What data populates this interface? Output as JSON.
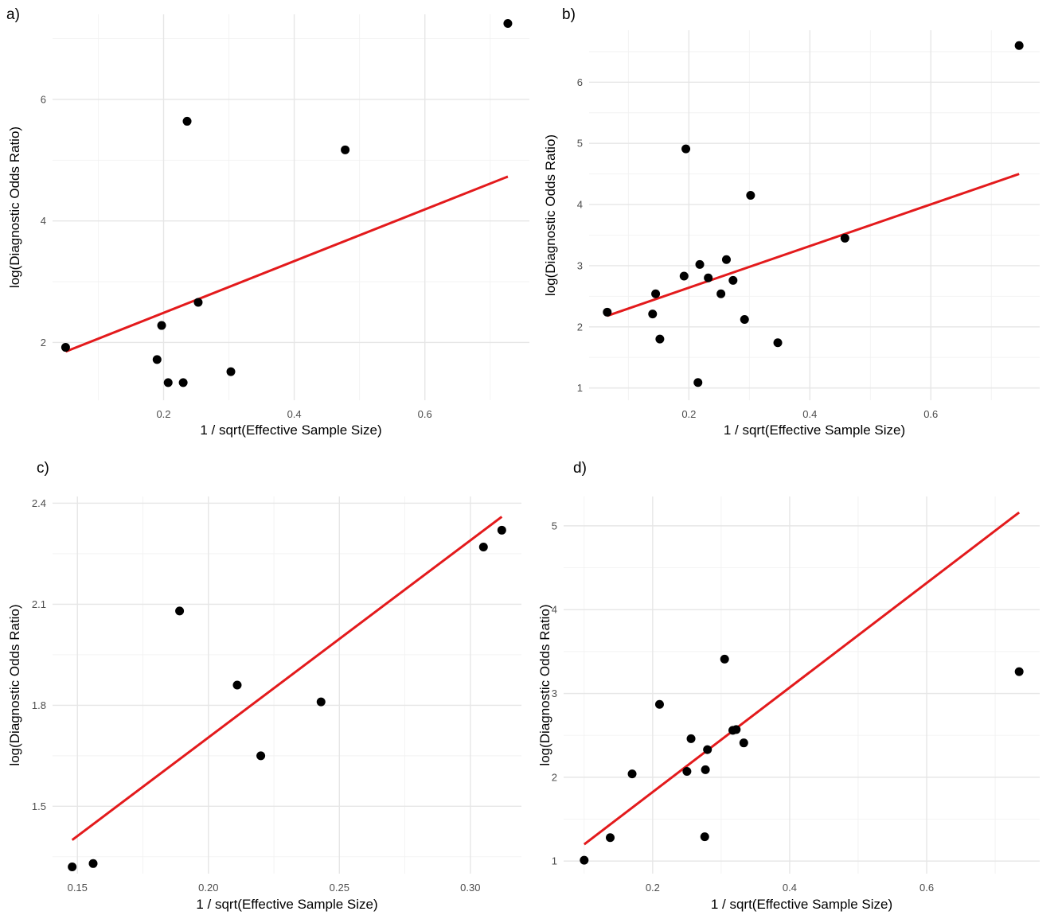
{
  "colors": {
    "point": "#000000",
    "fit_line": "#e31a1c",
    "grid": "#e6e6e6"
  },
  "chart_data": [
    {
      "type": "scatter",
      "panel_tag": "a)",
      "xlabel": "1 / sqrt(Effective Sample Size)",
      "ylabel": "log(Diagnostic Odds Ratio)",
      "xlim": [
        0.03,
        0.76
      ],
      "ylim": [
        1.05,
        7.4
      ],
      "xticks": [
        0.2,
        0.4,
        0.6
      ],
      "xtick_labels": [
        "0.2",
        "0.4",
        "0.6"
      ],
      "xminor": [
        0.1,
        0.3,
        0.5,
        0.7
      ],
      "yticks": [
        2,
        4,
        6
      ],
      "ytick_labels": [
        "2",
        "4",
        "6"
      ],
      "yminor": [
        3,
        5,
        7
      ],
      "grid": true,
      "points": [
        {
          "x": 0.05,
          "y": 1.92
        },
        {
          "x": 0.19,
          "y": 1.72
        },
        {
          "x": 0.197,
          "y": 2.28
        },
        {
          "x": 0.207,
          "y": 1.34
        },
        {
          "x": 0.23,
          "y": 1.34
        },
        {
          "x": 0.236,
          "y": 5.64
        },
        {
          "x": 0.253,
          "y": 2.66
        },
        {
          "x": 0.303,
          "y": 1.52
        },
        {
          "x": 0.478,
          "y": 5.17
        },
        {
          "x": 0.727,
          "y": 7.25
        }
      ],
      "fit_line": {
        "x": [
          0.05,
          0.727
        ],
        "y": [
          1.85,
          4.73
        ]
      }
    },
    {
      "type": "scatter",
      "panel_tag": "b)",
      "xlabel": "1 / sqrt(Effective Sample Size)",
      "ylabel": "log(Diagnostic Odds Ratio)",
      "xlim": [
        0.035,
        0.78
      ],
      "ylim": [
        0.8,
        6.85
      ],
      "xticks": [
        0.2,
        0.4,
        0.6
      ],
      "xtick_labels": [
        "0.2",
        "0.4",
        "0.6"
      ],
      "xminor": [
        0.1,
        0.3,
        0.5,
        0.7
      ],
      "yticks": [
        1,
        2,
        3,
        4,
        5,
        6
      ],
      "ytick_labels": [
        "1",
        "2",
        "3",
        "4",
        "5",
        "6"
      ],
      "yminor": [
        1.5,
        2.5,
        3.5,
        4.5,
        5.5,
        6.5
      ],
      "grid": true,
      "points": [
        {
          "x": 0.065,
          "y": 2.24
        },
        {
          "x": 0.14,
          "y": 2.21
        },
        {
          "x": 0.145,
          "y": 2.54
        },
        {
          "x": 0.152,
          "y": 1.8
        },
        {
          "x": 0.192,
          "y": 2.83
        },
        {
          "x": 0.195,
          "y": 4.91
        },
        {
          "x": 0.215,
          "y": 1.09
        },
        {
          "x": 0.218,
          "y": 3.02
        },
        {
          "x": 0.232,
          "y": 2.8
        },
        {
          "x": 0.253,
          "y": 2.54
        },
        {
          "x": 0.262,
          "y": 3.1
        },
        {
          "x": 0.273,
          "y": 2.76
        },
        {
          "x": 0.292,
          "y": 2.12
        },
        {
          "x": 0.302,
          "y": 4.15
        },
        {
          "x": 0.347,
          "y": 1.74
        },
        {
          "x": 0.458,
          "y": 3.45
        },
        {
          "x": 0.746,
          "y": 6.6
        }
      ],
      "fit_line": {
        "x": [
          0.065,
          0.746
        ],
        "y": [
          2.18,
          4.5
        ]
      }
    },
    {
      "type": "scatter",
      "panel_tag": "c)",
      "xlabel": "1 / sqrt(Effective Sample Size)",
      "ylabel": "log(Diagnostic Odds Ratio)",
      "xlim": [
        0.1405,
        0.3195
      ],
      "ylim": [
        1.3,
        2.42
      ],
      "xticks": [
        0.15,
        0.2,
        0.25,
        0.3
      ],
      "xtick_labels": [
        "0.15",
        "0.20",
        "0.25",
        "0.30"
      ],
      "xminor": [
        0.175,
        0.225,
        0.275
      ],
      "yticks": [
        1.5,
        1.8,
        2.1,
        2.4
      ],
      "ytick_labels": [
        "1.5",
        "1.8",
        "2.1",
        "2.4"
      ],
      "yminor": [
        1.35,
        1.65,
        1.95,
        2.25
      ],
      "grid": true,
      "points": [
        {
          "x": 0.148,
          "y": 1.32
        },
        {
          "x": 0.156,
          "y": 1.33
        },
        {
          "x": 0.189,
          "y": 2.08
        },
        {
          "x": 0.211,
          "y": 1.86
        },
        {
          "x": 0.22,
          "y": 1.65
        },
        {
          "x": 0.243,
          "y": 1.81
        },
        {
          "x": 0.305,
          "y": 2.27
        },
        {
          "x": 0.312,
          "y": 2.32
        }
      ],
      "fit_line": {
        "x": [
          0.148,
          0.312
        ],
        "y": [
          1.4,
          2.36
        ]
      }
    },
    {
      "type": "scatter",
      "panel_tag": "d)",
      "xlabel": "1 / sqrt(Effective Sample Size)",
      "ylabel": "log(Diagnostic Odds Ratio)",
      "xlim": [
        0.07,
        0.765
      ],
      "ylim": [
        0.85,
        5.35
      ],
      "xticks": [
        0.2,
        0.4,
        0.6
      ],
      "xtick_labels": [
        "0.2",
        "0.4",
        "0.6"
      ],
      "xminor": [
        0.1,
        0.3,
        0.5,
        0.7
      ],
      "yticks": [
        1,
        2,
        3,
        4,
        5
      ],
      "ytick_labels": [
        "1",
        "2",
        "3",
        "4",
        "5"
      ],
      "yminor": [
        1.5,
        2.5,
        3.5,
        4.5
      ],
      "grid": true,
      "points": [
        {
          "x": 0.1,
          "y": 1.01
        },
        {
          "x": 0.138,
          "y": 1.28
        },
        {
          "x": 0.17,
          "y": 2.04
        },
        {
          "x": 0.21,
          "y": 2.87
        },
        {
          "x": 0.25,
          "y": 2.07
        },
        {
          "x": 0.256,
          "y": 2.46
        },
        {
          "x": 0.276,
          "y": 1.29
        },
        {
          "x": 0.277,
          "y": 2.09
        },
        {
          "x": 0.28,
          "y": 2.33
        },
        {
          "x": 0.305,
          "y": 3.41
        },
        {
          "x": 0.317,
          "y": 2.56
        },
        {
          "x": 0.322,
          "y": 2.57
        },
        {
          "x": 0.333,
          "y": 2.41
        },
        {
          "x": 0.735,
          "y": 3.26
        }
      ],
      "fit_line": {
        "x": [
          0.1,
          0.735
        ],
        "y": [
          1.2,
          5.16
        ]
      }
    }
  ]
}
